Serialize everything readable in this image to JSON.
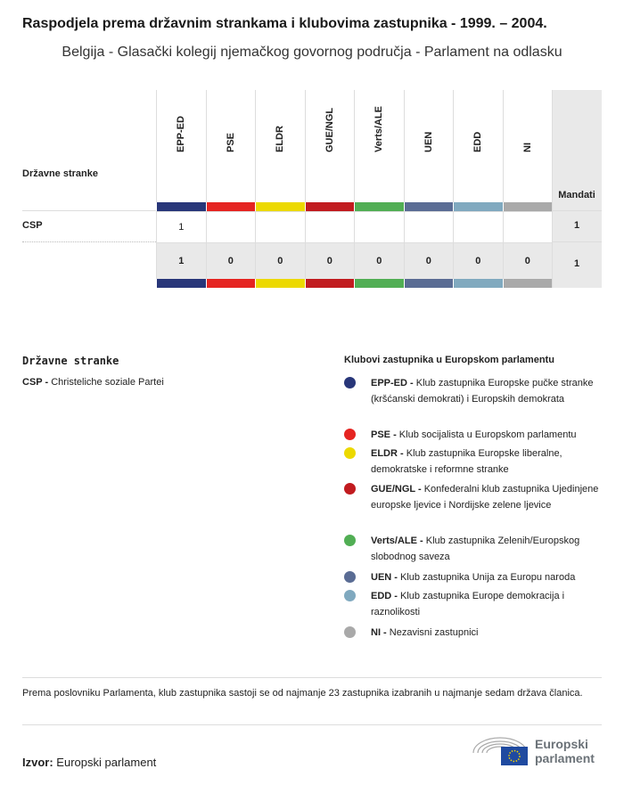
{
  "title": "Raspodjela prema državnim strankama i klubovima zastupnika - 1999. – 2004.",
  "subtitle": "Belgija - Glasački kolegij njemačkog govornog područja - Parlament na odlasku",
  "table": {
    "row_header": "Državne stranke",
    "total_header": "Mandati",
    "groups": [
      {
        "code": "EPP-ED",
        "color": "#283679"
      },
      {
        "code": "PSE",
        "color": "#e52421"
      },
      {
        "code": "ELDR",
        "color": "#ecd900"
      },
      {
        "code": "GUE/NGL",
        "color": "#c11b1f"
      },
      {
        "code": "Verts/ALE",
        "color": "#51ae54"
      },
      {
        "code": "UEN",
        "color": "#5a6c94"
      },
      {
        "code": "EDD",
        "color": "#80a9bf"
      },
      {
        "code": "NI",
        "color": "#a9a9a9"
      }
    ],
    "rows": [
      {
        "party": "CSP",
        "values": [
          "1",
          "",
          "",
          "",
          "",
          "",
          "",
          ""
        ],
        "total": "1"
      }
    ],
    "totals": {
      "values": [
        "1",
        "0",
        "0",
        "0",
        "0",
        "0",
        "0",
        "0"
      ],
      "total": "1"
    }
  },
  "legend_parties": {
    "heading": "Državne stranke",
    "items": [
      {
        "code": "CSP -",
        "name": "Christeliche soziale Partei"
      }
    ]
  },
  "legend_groups": {
    "heading": "Klubovi zastupnika u Europskom parlamentu",
    "items": [
      {
        "code": "EPP-ED -",
        "name": "Klub zastupnika Europske pučke stranke (kršćanski demokrati) i Europskih demokrata"
      },
      {
        "code": "PSE -",
        "name": "Klub socijalista u Europskom parlamentu"
      },
      {
        "code": "ELDR -",
        "name": "Klub zastupnika Europske liberalne, demokratske i reformne stranke"
      },
      {
        "code": "GUE/NGL -",
        "name": "Konfederalni klub zastupnika Ujedinjene europske ljevice i Nordijske zelene ljevice"
      },
      {
        "code": "Verts/ALE -",
        "name": "Klub zastupnika Zelenih/Europskog slobodnog saveza"
      },
      {
        "code": "UEN -",
        "name": "Klub zastupnika Unija za Europu naroda"
      },
      {
        "code": "EDD -",
        "name": "Klub zastupnika Europe demokracija i raznolikosti"
      },
      {
        "code": "NI -",
        "name": "Nezavisni zastupnici"
      }
    ]
  },
  "footnote": "Prema poslovniku Parlamenta, klub zastupnika sastoji se od najmanje 23 zastupnika izabranih u najmanje sedam država članica.",
  "source": {
    "label": "Izvor:",
    "value": "Europski parlament"
  },
  "logo": {
    "line1": "Europski",
    "line2": "parlament"
  }
}
